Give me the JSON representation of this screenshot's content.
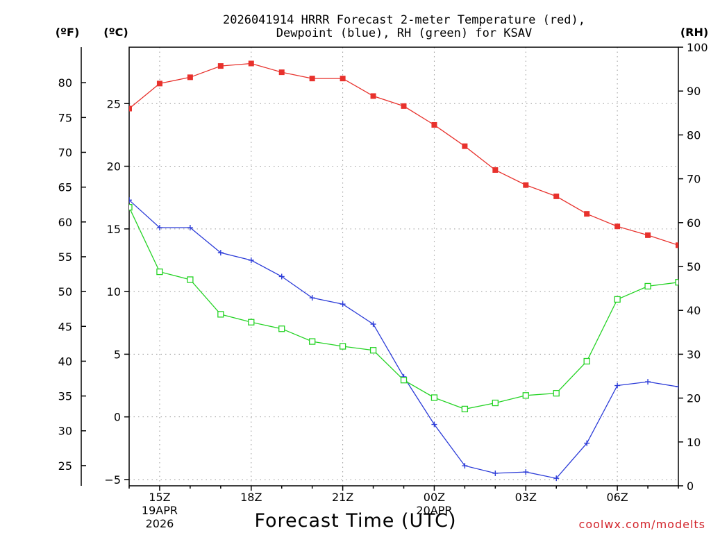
{
  "chart_data": {
    "type": "line",
    "title_line1": "2026041914 HRRR Forecast 2-meter Temperature (red),",
    "title_line2": "Dewpoint (blue), RH (green) for KSAV",
    "xlabel": "Forecast Time (UTC)",
    "credit": "coolwx.com/modelts",
    "units": {
      "f": "(ºF)",
      "c": "(ºC)",
      "rh": "(RH)"
    },
    "x_hours": [
      14,
      15,
      16,
      17,
      18,
      19,
      20,
      21,
      22,
      23,
      24,
      25,
      26,
      27,
      28,
      29,
      30,
      31,
      32
    ],
    "xlim": [
      14,
      32
    ],
    "x_ticks": [
      {
        "hour": 15,
        "label": "15Z",
        "sub1": "19APR",
        "sub2": "2026"
      },
      {
        "hour": 18,
        "label": "18Z"
      },
      {
        "hour": 21,
        "label": "21Z"
      },
      {
        "hour": 24,
        "label": "00Z",
        "sub1": "20APR"
      },
      {
        "hour": 27,
        "label": "03Z"
      },
      {
        "hour": 30,
        "label": "06Z"
      }
    ],
    "x_grid_hours": [
      15,
      18,
      21,
      24,
      27,
      30
    ],
    "y_celsius_lim": [
      -5.5,
      29.5
    ],
    "y_celsius_ticks": [
      -5,
      0,
      5,
      10,
      15,
      20,
      25
    ],
    "y_fahrenheit_ticks": [
      25,
      30,
      35,
      40,
      45,
      50,
      55,
      60,
      65,
      70,
      75,
      80
    ],
    "y_rh_lim": [
      0,
      100
    ],
    "y_rh_ticks": [
      0,
      10,
      20,
      30,
      40,
      50,
      60,
      70,
      80,
      90,
      100
    ],
    "series": [
      {
        "name": "2-meter Temperature",
        "color": "#e8312c",
        "marker": "filled-square",
        "axis": "celsius",
        "values": [
          24.6,
          26.6,
          27.1,
          28.0,
          28.2,
          27.5,
          27.0,
          27.0,
          25.6,
          24.8,
          23.3,
          21.6,
          19.7,
          18.5,
          17.6,
          16.2,
          15.2,
          14.5,
          13.7
        ]
      },
      {
        "name": "Dewpoint",
        "color": "#2b3bd8",
        "marker": "plus",
        "axis": "celsius",
        "values": [
          17.3,
          15.1,
          15.1,
          13.1,
          12.5,
          11.2,
          9.5,
          9.0,
          7.4,
          3.2,
          -0.6,
          -3.9,
          -4.5,
          -4.4,
          -4.9,
          -2.1,
          2.5,
          2.8,
          2.4
        ]
      },
      {
        "name": "Relative Humidity",
        "color": "#25d325",
        "marker": "open-square",
        "axis": "rh",
        "values": [
          63.5,
          48.8,
          47.0,
          39.1,
          37.3,
          35.8,
          32.9,
          31.8,
          30.9,
          24.1,
          20.1,
          17.5,
          18.9,
          20.6,
          21.1,
          28.4,
          42.5,
          45.5,
          46.4
        ]
      }
    ]
  }
}
